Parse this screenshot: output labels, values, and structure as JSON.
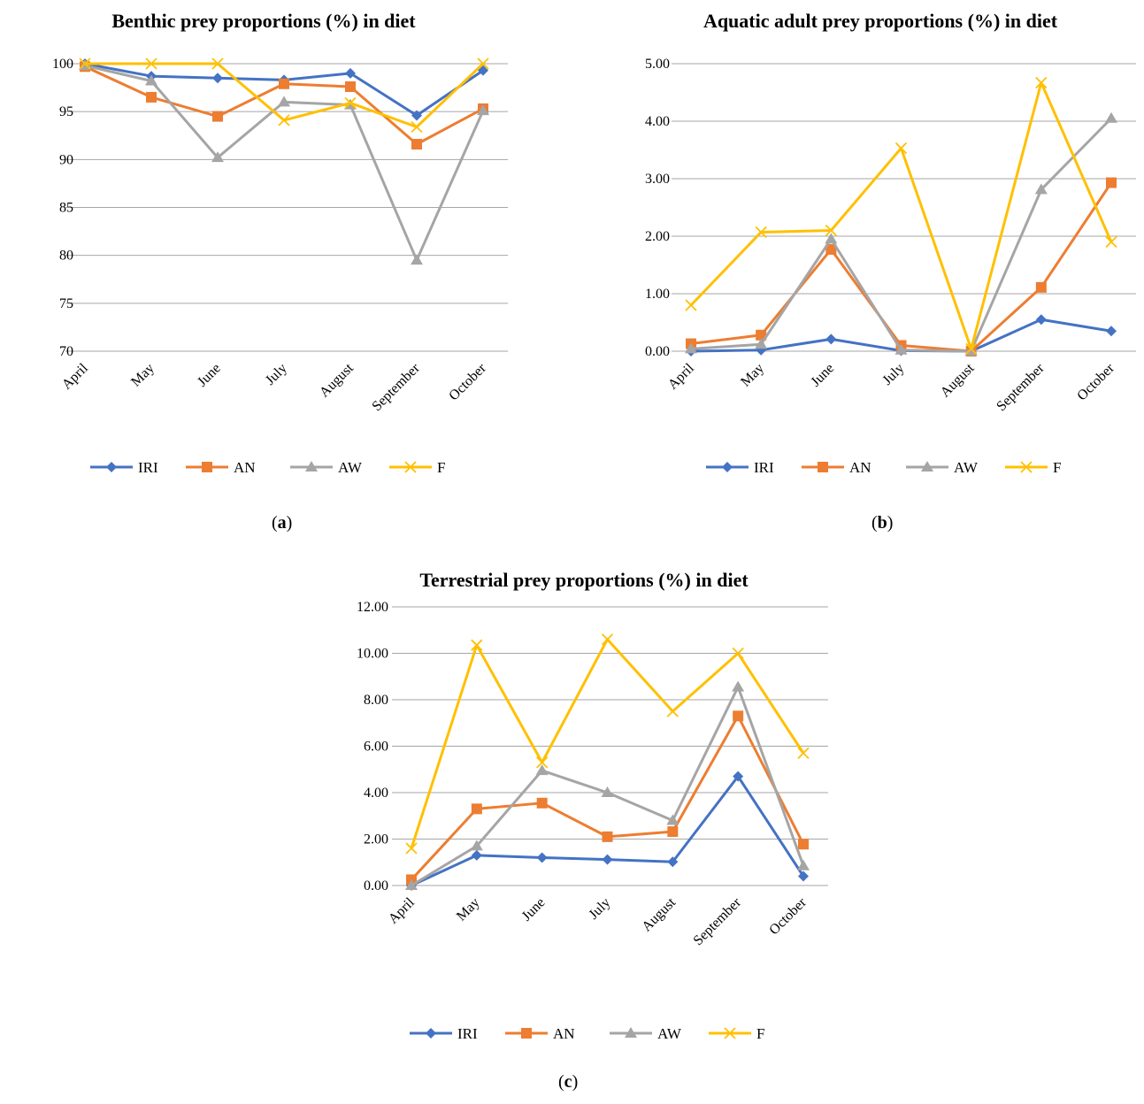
{
  "colors": {
    "IRI": "#4472C4",
    "AN": "#ED7D31",
    "AW": "#A5A5A5",
    "F": "#FFC000",
    "grid": "#a6a6a6"
  },
  "chart_data": [
    {
      "type": "line",
      "title": "Benthic prey proportions (%) in diet",
      "caption_letter": "a",
      "categories": [
        "April",
        "May",
        "June",
        "July",
        "August",
        "September",
        "October"
      ],
      "ylim": [
        70,
        100
      ],
      "yticks": [
        "70",
        "75",
        "80",
        "85",
        "90",
        "95",
        "100"
      ],
      "grid": true,
      "legend": "bottom",
      "series": [
        {
          "name": "IRI",
          "marker": "diamond",
          "values": [
            100,
            98.7,
            98.5,
            98.3,
            99.0,
            94.6,
            99.3
          ]
        },
        {
          "name": "AN",
          "marker": "square",
          "values": [
            99.7,
            96.5,
            94.5,
            97.9,
            97.6,
            91.6,
            95.3
          ]
        },
        {
          "name": "AW",
          "marker": "triangle",
          "values": [
            99.8,
            98.2,
            90.2,
            96.0,
            95.7,
            79.5,
            95.1
          ]
        },
        {
          "name": "F",
          "marker": "x",
          "values": [
            100,
            100,
            100,
            94.1,
            95.9,
            93.4,
            100
          ]
        }
      ]
    },
    {
      "type": "line",
      "title": "Aquatic adult prey proportions (%) in diet",
      "caption_letter": "b",
      "categories": [
        "April",
        "May",
        "June",
        "July",
        "August",
        "September",
        "October"
      ],
      "ylim": [
        0,
        5
      ],
      "yticks": [
        "0.00",
        "1.00",
        "2.00",
        "3.00",
        "4.00",
        "5.00"
      ],
      "grid": true,
      "legend": "bottom",
      "series": [
        {
          "name": "IRI",
          "marker": "diamond",
          "values": [
            0.0,
            0.02,
            0.21,
            0.01,
            0.0,
            0.55,
            0.35
          ]
        },
        {
          "name": "AN",
          "marker": "square",
          "values": [
            0.13,
            0.28,
            1.77,
            0.1,
            0.0,
            1.11,
            2.93
          ]
        },
        {
          "name": "AW",
          "marker": "triangle",
          "values": [
            0.04,
            0.12,
            1.95,
            0.02,
            0.0,
            2.81,
            4.05
          ]
        },
        {
          "name": "F",
          "marker": "x",
          "values": [
            0.8,
            2.07,
            2.1,
            3.53,
            0.04,
            4.67,
            1.9
          ]
        }
      ]
    },
    {
      "type": "line",
      "title": "Terrestrial prey proportions (%) in diet",
      "caption_letter": "c",
      "categories": [
        "April",
        "May",
        "June",
        "July",
        "August",
        "September",
        "October"
      ],
      "ylim": [
        0,
        12
      ],
      "yticks": [
        "0.00",
        "2.00",
        "4.00",
        "6.00",
        "8.00",
        "10.00",
        "12.00"
      ],
      "grid": true,
      "legend": "bottom",
      "series": [
        {
          "name": "IRI",
          "marker": "diamond",
          "values": [
            0.0,
            1.3,
            1.2,
            1.12,
            1.02,
            4.7,
            0.4
          ]
        },
        {
          "name": "AN",
          "marker": "square",
          "values": [
            0.25,
            3.3,
            3.55,
            2.1,
            2.32,
            7.3,
            1.78
          ]
        },
        {
          "name": "AW",
          "marker": "triangle",
          "values": [
            0.0,
            1.7,
            4.95,
            4.0,
            2.8,
            8.55,
            0.85
          ]
        },
        {
          "name": "F",
          "marker": "x",
          "values": [
            1.6,
            10.35,
            5.3,
            10.6,
            7.5,
            10.0,
            5.7
          ]
        }
      ]
    }
  ]
}
